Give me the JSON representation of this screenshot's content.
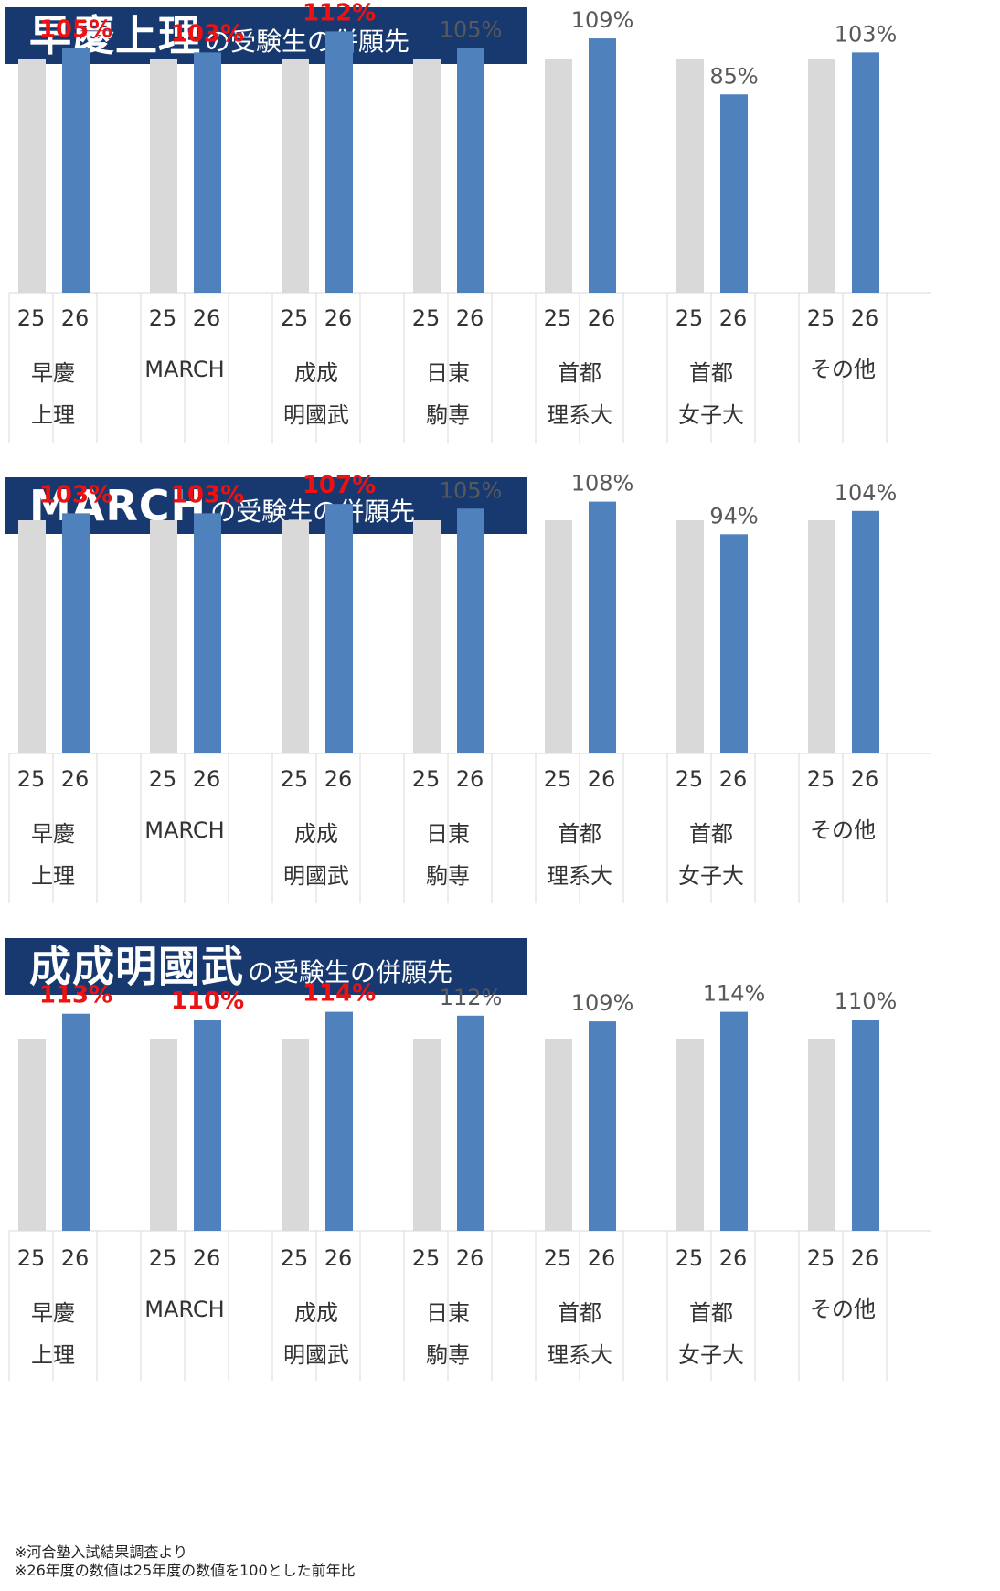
{
  "colors": {
    "header_bg": "#17396f",
    "bar_prev": "#d9d9d9",
    "bar_curr": "#4f81bd",
    "label_highlight": "#ee1111",
    "label_normal": "#595959",
    "table_line": "#d9d9d9"
  },
  "chart_data": [
    {
      "type": "bar",
      "title_main": "早慶上理",
      "title_sub": "の受験生の併願先",
      "categories": [
        [
          "早慶",
          "上理"
        ],
        [
          "MARCH"
        ],
        [
          "成成",
          "明國武"
        ],
        [
          "日東",
          "駒専"
        ],
        [
          "首都",
          "理系大"
        ],
        [
          "首都",
          "女子大"
        ],
        [
          "その他"
        ]
      ],
      "years": [
        "25",
        "26"
      ],
      "series": [
        {
          "values": [
            100,
            100,
            100,
            100,
            100,
            100,
            100
          ]
        },
        {
          "values": [
            105,
            103,
            112,
            105,
            109,
            85,
            103
          ]
        }
      ],
      "data_labels": [
        "105%",
        "103%",
        "112%",
        "105%",
        "109%",
        "85%",
        "103%"
      ],
      "highlight": [
        true,
        true,
        true,
        false,
        false,
        false,
        false
      ]
    },
    {
      "type": "bar",
      "title_main": "MARCH",
      "title_sub": "の受験生の併願先",
      "categories": [
        [
          "早慶",
          "上理"
        ],
        [
          "MARCH"
        ],
        [
          "成成",
          "明國武"
        ],
        [
          "日東",
          "駒専"
        ],
        [
          "首都",
          "理系大"
        ],
        [
          "首都",
          "女子大"
        ],
        [
          "その他"
        ]
      ],
      "years": [
        "25",
        "26"
      ],
      "series": [
        {
          "values": [
            100,
            100,
            100,
            100,
            100,
            100,
            100
          ]
        },
        {
          "values": [
            103,
            103,
            107,
            105,
            108,
            94,
            104
          ]
        }
      ],
      "data_labels": [
        "103%",
        "103%",
        "107%",
        "105%",
        "108%",
        "94%",
        "104%"
      ],
      "highlight": [
        true,
        true,
        true,
        false,
        false,
        false,
        false
      ]
    },
    {
      "type": "bar",
      "title_main": "成成明國武",
      "title_sub": "の受験生の併願先",
      "categories": [
        [
          "早慶",
          "上理"
        ],
        [
          "MARCH"
        ],
        [
          "成成",
          "明國武"
        ],
        [
          "日東",
          "駒専"
        ],
        [
          "首都",
          "理系大"
        ],
        [
          "首都",
          "女子大"
        ],
        [
          "その他"
        ]
      ],
      "years": [
        "25",
        "26"
      ],
      "series": [
        {
          "values": [
            100,
            100,
            100,
            100,
            100,
            100,
            100
          ]
        },
        {
          "values": [
            113,
            110,
            114,
            112,
            109,
            114,
            110
          ]
        }
      ],
      "data_labels": [
        "113%",
        "110%",
        "114%",
        "112%",
        "109%",
        "114%",
        "110%"
      ],
      "highlight": [
        true,
        true,
        true,
        false,
        false,
        false,
        false
      ]
    }
  ],
  "footnotes": [
    "※河合塾入試結果調査より",
    "※26年度の数値は25年度の数値を100とした前年比"
  ]
}
